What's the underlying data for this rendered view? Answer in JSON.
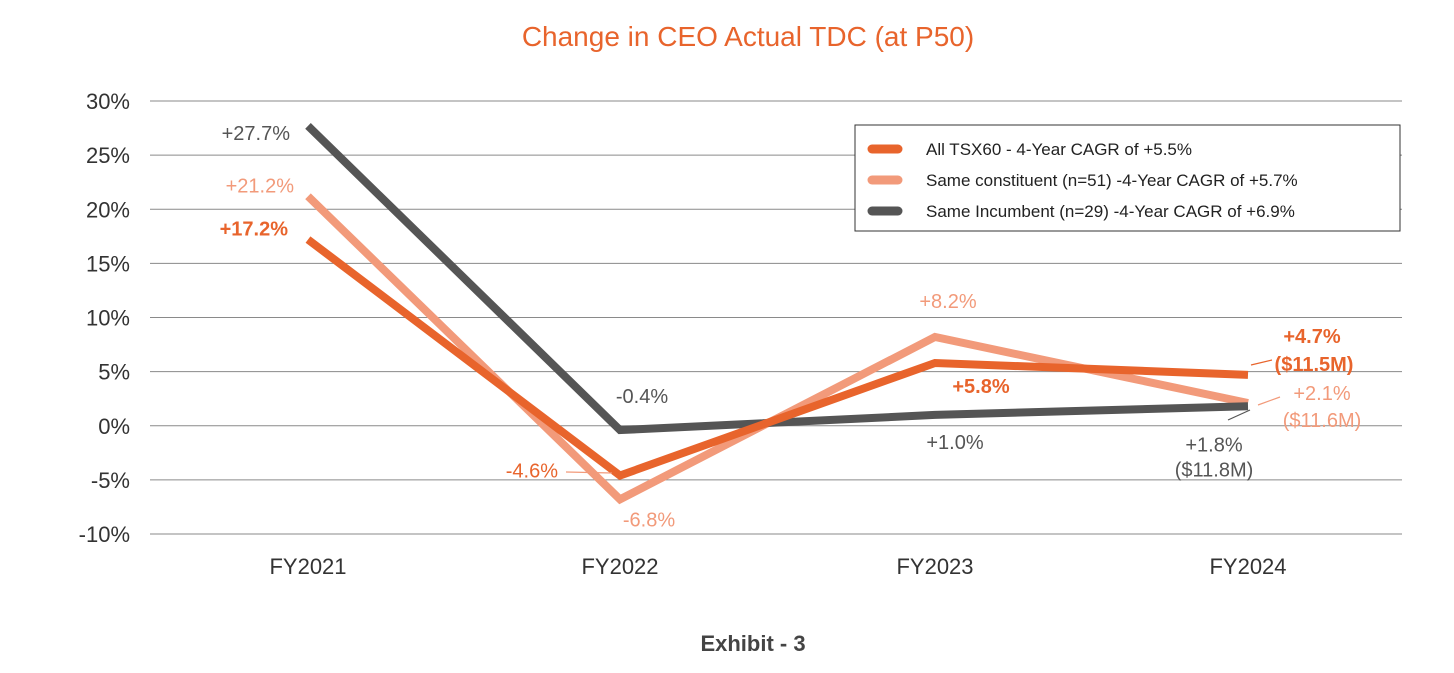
{
  "caption": "Exhibit - 3",
  "chart_data": {
    "type": "line",
    "title": "Change in CEO Actual TDC (at P50)",
    "xlabel": "",
    "ylabel": "",
    "categories": [
      "FY2021",
      "FY2022",
      "FY2023",
      "FY2024"
    ],
    "ylim": [
      -10,
      30
    ],
    "yticks": [
      30,
      25,
      20,
      15,
      10,
      5,
      0,
      -5,
      -10
    ],
    "ytick_labels": [
      "30%",
      "25%",
      "20%",
      "15%",
      "10%",
      "5%",
      "0%",
      "-5%",
      "-10%"
    ],
    "grid": true,
    "legend_position": "top-right",
    "series": [
      {
        "name": "All TSX60 - 4-Year CAGR of +5.5%",
        "color": "#e8642c",
        "values": [
          17.2,
          -4.6,
          5.8,
          4.7
        ],
        "labels": [
          "+17.2%",
          "-4.6%",
          "+5.8%",
          "+4.7%"
        ],
        "end_note": "($11.5M)"
      },
      {
        "name": "Same constituent (n=51) -4-Year CAGR of +5.7%",
        "color": "#f29a7a",
        "values": [
          21.2,
          -6.8,
          8.2,
          2.1
        ],
        "labels": [
          "+21.2%",
          "-6.8%",
          "+8.2%",
          "+2.1%"
        ],
        "end_note": "($11.6M)"
      },
      {
        "name": "Same Incumbent (n=29) -4-Year CAGR of +6.9%",
        "color": "#555555",
        "values": [
          27.7,
          -0.4,
          1.0,
          1.8
        ],
        "labels": [
          "+27.7%",
          "-0.4%",
          "+1.0%",
          "+1.8%"
        ],
        "end_note": "($11.8M)"
      }
    ]
  }
}
